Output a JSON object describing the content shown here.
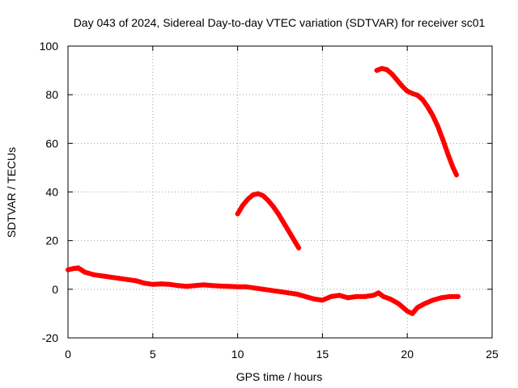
{
  "chart_data": {
    "type": "scatter",
    "title": "Day 043 of 2024, Sidereal Day-to-day VTEC variation (SDTVAR) for receiver sc01",
    "xlabel": "GPS time / hours",
    "ylabel": "SDTVAR / TECUs",
    "xlim": [
      0,
      25
    ],
    "ylim": [
      -20,
      100
    ],
    "xticks": [
      0,
      5,
      10,
      15,
      20,
      25
    ],
    "yticks": [
      -20,
      0,
      20,
      40,
      60,
      80,
      100
    ],
    "grid": true,
    "legend": "none",
    "series_color": "#ff0000",
    "series": [
      {
        "name": "satellite-pass-1",
        "x": [
          0.0,
          0.3,
          0.6,
          1.0,
          1.5,
          2.0,
          2.5,
          3.0,
          3.5,
          4.0,
          4.5,
          5.0,
          5.5,
          6.0,
          6.5,
          7.0,
          7.5,
          8.0,
          8.5,
          9.0,
          9.5,
          10.0,
          10.5,
          11.0,
          11.5,
          12.0,
          12.5,
          13.0,
          13.5,
          14.0,
          14.5,
          15.0,
          15.5,
          16.0,
          16.5,
          17.0,
          17.5,
          18.0,
          18.3,
          18.6,
          19.0,
          19.5,
          20.0,
          20.3,
          20.6,
          21.0,
          21.5,
          22.0,
          22.5,
          23.0
        ],
        "y": [
          8.0,
          8.5,
          8.8,
          7.0,
          6.0,
          5.5,
          5.0,
          4.5,
          4.0,
          3.5,
          2.5,
          2.0,
          2.2,
          2.0,
          1.5,
          1.2,
          1.5,
          1.8,
          1.5,
          1.3,
          1.2,
          1.0,
          1.0,
          0.5,
          0.0,
          -0.5,
          -1.0,
          -1.5,
          -2.0,
          -3.0,
          -4.0,
          -4.5,
          -3.0,
          -2.5,
          -3.5,
          -3.0,
          -3.0,
          -2.5,
          -1.5,
          -3.0,
          -4.0,
          -6.0,
          -9.0,
          -10.0,
          -7.5,
          -6.0,
          -4.5,
          -3.5,
          -3.0,
          -3.0
        ]
      },
      {
        "name": "satellite-pass-2",
        "x": [
          10.0,
          10.3,
          10.6,
          10.9,
          11.2,
          11.5,
          11.8,
          12.1,
          12.4,
          12.7,
          13.0,
          13.3,
          13.6
        ],
        "y": [
          31.0,
          34.5,
          37.0,
          38.8,
          39.3,
          38.5,
          36.5,
          34.0,
          31.0,
          27.5,
          24.0,
          20.5,
          17.0
        ]
      },
      {
        "name": "satellite-pass-3",
        "x": [
          18.2,
          18.5,
          18.8,
          19.1,
          19.4,
          19.7,
          20.0,
          20.3,
          20.6,
          20.9,
          21.2,
          21.5,
          21.8,
          22.1,
          22.4,
          22.7,
          22.9
        ],
        "y": [
          90.0,
          90.8,
          90.3,
          88.5,
          86.0,
          83.5,
          81.5,
          80.5,
          79.8,
          78.0,
          75.0,
          71.5,
          67.0,
          61.5,
          55.5,
          50.0,
          47.0
        ]
      }
    ]
  }
}
